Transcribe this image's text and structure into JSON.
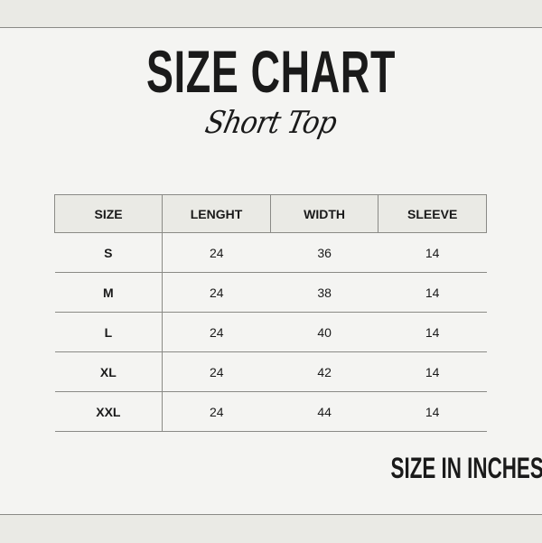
{
  "title": "SIZE CHART",
  "subtitle": "Short Top",
  "table": {
    "headers": [
      "SIZE",
      "LENGHT",
      "WIDTH",
      "SLEEVE"
    ],
    "rows": [
      [
        "S",
        "24",
        "36",
        "14"
      ],
      [
        "M",
        "24",
        "38",
        "14"
      ],
      [
        "L",
        "24",
        "40",
        "14"
      ],
      [
        "XL",
        "24",
        "42",
        "14"
      ],
      [
        "XXL",
        "24",
        "44",
        "14"
      ]
    ]
  },
  "note": "SIZE IN INCHES",
  "colors": {
    "background": "#f4f4f2",
    "band": "#eaeae5",
    "text": "#1a1a1a",
    "rule": "#8a8a86"
  }
}
